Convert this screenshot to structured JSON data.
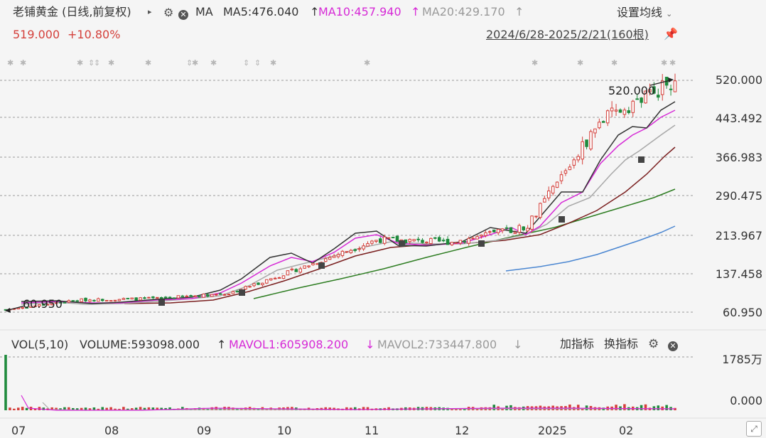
{
  "header": {
    "title": "老铺黄金 (日线,前复权)",
    "indicator_name": "MA",
    "ma5": "MA5:476.040",
    "ma10": "MA10:457.940",
    "ma20": "MA20:429.170",
    "settings_label": "设置均线",
    "price": "519.000",
    "change": "+10.80%",
    "range": "2024/6/28-2025/2/21(160根)"
  },
  "price_axis": [
    "520.000",
    "443.492",
    "366.983",
    "290.475",
    "213.967",
    "137.458",
    "60.950"
  ],
  "annotations": {
    "max_label": "520.000",
    "min_label": "60.950"
  },
  "volume_header": {
    "name": "VOL(5,10)",
    "volume": "VOLUME:593098.000",
    "mavol1": "MAVOL1:605908.200",
    "mavol2": "MAVOL2:733447.800",
    "add_indicator": "加指标",
    "switch_indicator": "换指标"
  },
  "volume_axis": [
    "1785万",
    "0.000"
  ],
  "x_axis": [
    "07",
    "08",
    "09",
    "10",
    "11",
    "12",
    "2025",
    "02"
  ],
  "colors": {
    "up": "#d43f3a",
    "down": "#1f8a3c",
    "ma5": "#333333",
    "ma10": "#d62ad6",
    "ma20": "#a8a8a8",
    "ma_dark": "#7a1f1f",
    "ma_green": "#2e7d22",
    "ma_blue": "#4a86d1"
  },
  "icons": [
    "gear-icon",
    "close-icon",
    "pin-icon",
    "chevron-down-icon",
    "triangle-right-icon",
    "arrow-up-icon",
    "arrow-down-icon",
    "expand-icon"
  ],
  "chart_data": {
    "type": "candlestick",
    "x": [
      "2024-06-28",
      "2024-07",
      "2024-08",
      "2024-09",
      "2024-10",
      "2024-11",
      "2024-12",
      "2025-01",
      "2025-02",
      "2025-02-21"
    ],
    "close": [
      66,
      85,
      88,
      98,
      150,
      205,
      200,
      230,
      440,
      519
    ],
    "ylim": [
      60.95,
      520.0
    ]
  }
}
